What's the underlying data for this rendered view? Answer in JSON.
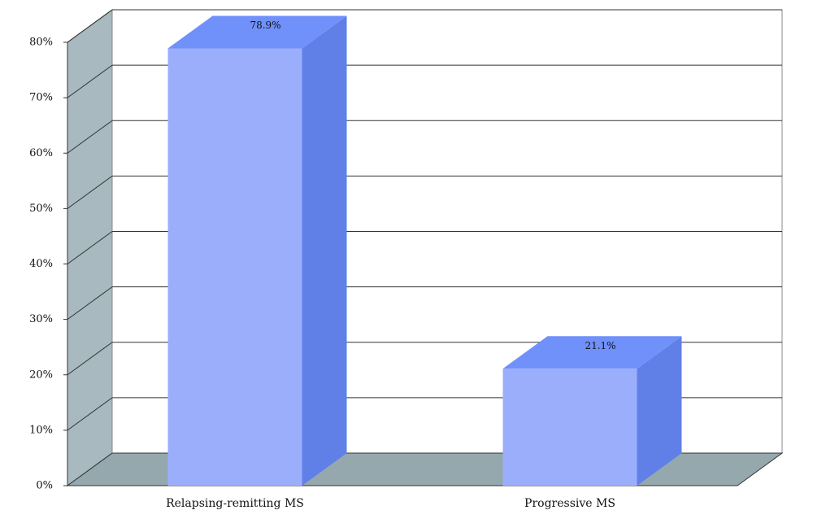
{
  "chart_data": {
    "type": "bar3d",
    "categories": [
      "Relapsing-remitting MS",
      "Progressive MS"
    ],
    "values": [
      78.9,
      21.1
    ],
    "value_labels": [
      "78.9%",
      "21.1%"
    ],
    "color": "#9baefc",
    "ylim": [
      0,
      80
    ],
    "yticks": [
      {
        "value": 0,
        "label": "0%"
      },
      {
        "value": 10,
        "label": "10%"
      },
      {
        "value": 20,
        "label": "20%"
      },
      {
        "value": 30,
        "label": "30%"
      },
      {
        "value": 40,
        "label": "40%"
      },
      {
        "value": 50,
        "label": "50%"
      },
      {
        "value": 60,
        "label": "60%"
      },
      {
        "value": 70,
        "label": "70%"
      },
      {
        "value": 80,
        "label": "80%"
      }
    ],
    "grid": true
  }
}
